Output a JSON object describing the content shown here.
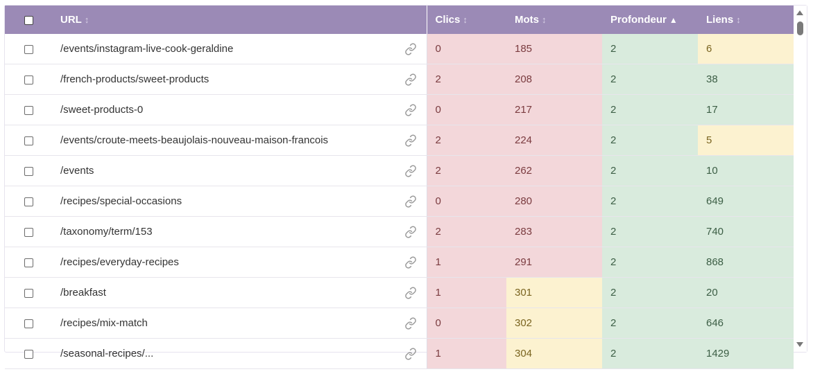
{
  "header": {
    "url": "URL",
    "clics": "Clics",
    "mots": "Mots",
    "profondeur": "Profondeur",
    "liens": "Liens",
    "sort_neutral": "↕",
    "sort_active": "▲"
  },
  "colors": {
    "header_bg": "#9b8ab6",
    "low": "#f3d7da",
    "mid": "#fcf2d0",
    "good": "#d9ebdd"
  },
  "rows": [
    {
      "url": "/events/instagram-live-cook-geraldine",
      "clics": "0",
      "mots": "185",
      "profondeur": "2",
      "liens": "6",
      "clics_color": "red",
      "mots_color": "red",
      "prof_color": "green",
      "liens_color": "yellow"
    },
    {
      "url": "/french-products/sweet-products",
      "clics": "2",
      "mots": "208",
      "profondeur": "2",
      "liens": "38",
      "clics_color": "red",
      "mots_color": "red",
      "prof_color": "green",
      "liens_color": "green"
    },
    {
      "url": "/sweet-products-0",
      "clics": "0",
      "mots": "217",
      "profondeur": "2",
      "liens": "17",
      "clics_color": "red",
      "mots_color": "red",
      "prof_color": "green",
      "liens_color": "green"
    },
    {
      "url": "/events/croute-meets-beaujolais-nouveau-maison-francois",
      "clics": "2",
      "mots": "224",
      "profondeur": "2",
      "liens": "5",
      "clics_color": "red",
      "mots_color": "red",
      "prof_color": "green",
      "liens_color": "yellow"
    },
    {
      "url": "/events",
      "clics": "2",
      "mots": "262",
      "profondeur": "2",
      "liens": "10",
      "clics_color": "red",
      "mots_color": "red",
      "prof_color": "green",
      "liens_color": "green"
    },
    {
      "url": "/recipes/special-occasions",
      "clics": "0",
      "mots": "280",
      "profondeur": "2",
      "liens": "649",
      "clics_color": "red",
      "mots_color": "red",
      "prof_color": "green",
      "liens_color": "green"
    },
    {
      "url": "/taxonomy/term/153",
      "clics": "2",
      "mots": "283",
      "profondeur": "2",
      "liens": "740",
      "clics_color": "red",
      "mots_color": "red",
      "prof_color": "green",
      "liens_color": "green"
    },
    {
      "url": "/recipes/everyday-recipes",
      "clics": "1",
      "mots": "291",
      "profondeur": "2",
      "liens": "868",
      "clics_color": "red",
      "mots_color": "red",
      "prof_color": "green",
      "liens_color": "green"
    },
    {
      "url": "/breakfast",
      "clics": "1",
      "mots": "301",
      "profondeur": "2",
      "liens": "20",
      "clics_color": "red",
      "mots_color": "yellow",
      "prof_color": "green",
      "liens_color": "green"
    },
    {
      "url": "/recipes/mix-match",
      "clics": "0",
      "mots": "302",
      "profondeur": "2",
      "liens": "646",
      "clics_color": "red",
      "mots_color": "yellow",
      "prof_color": "green",
      "liens_color": "green"
    },
    {
      "url": "/seasonal-recipes/...",
      "clics": "1",
      "mots": "304",
      "profondeur": "2",
      "liens": "1429",
      "clics_color": "red",
      "mots_color": "yellow",
      "prof_color": "green",
      "liens_color": "green"
    }
  ]
}
